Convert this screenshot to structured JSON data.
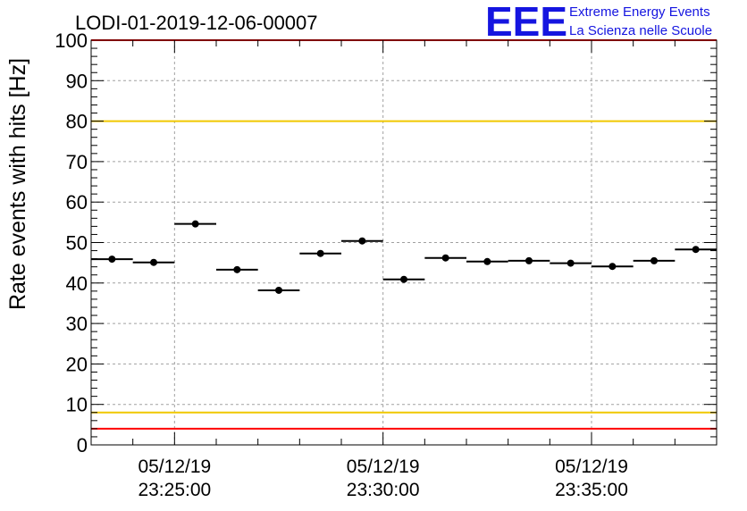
{
  "header": {
    "run_id": "LODI-01-2019-12-06-00007",
    "logo_text": "EEE",
    "org_line1": "Extreme Energy Events",
    "org_line2": "La Scienza nelle Scuole"
  },
  "chart_data": {
    "type": "scatter",
    "title": "LODI-01-2019-12-06-00007",
    "xlabel": "",
    "ylabel": "Rate events with hits [Hz]",
    "ylim": [
      0,
      100
    ],
    "yticks": [
      0,
      10,
      20,
      30,
      40,
      50,
      60,
      70,
      80,
      90,
      100
    ],
    "xlim_minutes": [
      0,
      15
    ],
    "xticks": [
      {
        "minute": 2,
        "date": "05/12/19",
        "time": "23:25:00"
      },
      {
        "minute": 7,
        "date": "05/12/19",
        "time": "23:30:00"
      },
      {
        "minute": 12,
        "date": "05/12/19",
        "time": "23:35:00"
      }
    ],
    "bin_width_minutes": 1,
    "series": [
      {
        "name": "rate",
        "x_minutes": [
          0.5,
          1.5,
          2.5,
          3.5,
          4.5,
          5.5,
          6.5,
          7.5,
          8.5,
          9.5,
          10.5,
          11.5,
          12.5,
          13.5,
          14.5
        ],
        "values": [
          45.9,
          45.1,
          54.6,
          43.3,
          38.2,
          47.3,
          50.4,
          40.9,
          46.2,
          45.3,
          45.5,
          44.9,
          44.1,
          45.5,
          48.3
        ]
      }
    ],
    "reference_lines": [
      {
        "y": 100,
        "color": "#ff0000"
      },
      {
        "y": 80,
        "color": "#f0c800"
      },
      {
        "y": 8,
        "color": "#f0c800"
      },
      {
        "y": 4,
        "color": "#ff0000"
      }
    ],
    "grid": true
  }
}
